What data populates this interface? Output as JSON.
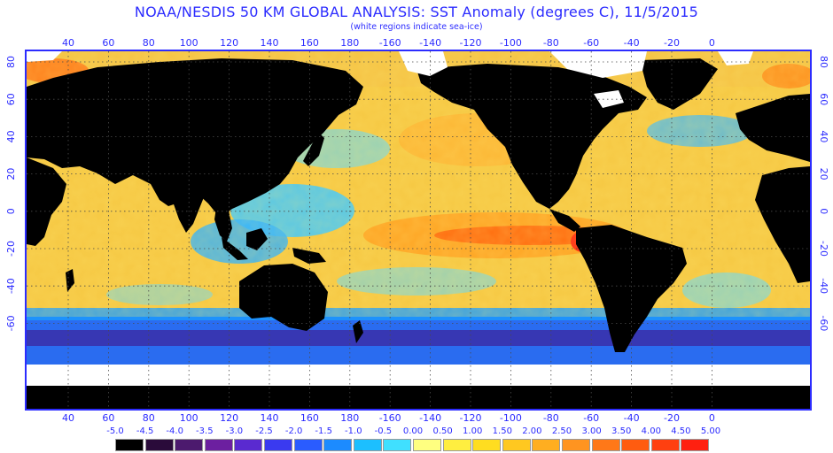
{
  "header": {
    "title": "NOAA/NESDIS 50 KM GLOBAL ANALYSIS: SST Anomaly (degrees C), 11/5/2015",
    "subtitle": "(white regions indicate sea-ice)"
  },
  "axes": {
    "top_lon_labels": [
      "40",
      "60",
      "80",
      "100",
      "120",
      "140",
      "160",
      "180",
      "-160",
      "-140",
      "-120",
      "-100",
      "-80",
      "-60",
      "-40",
      "-20",
      "0"
    ],
    "bottom_lon_labels": [
      "40",
      "60",
      "80",
      "100",
      "120",
      "140",
      "160",
      "180",
      "-160",
      "-140",
      "-120",
      "-100",
      "-80",
      "-60",
      "-40",
      "-20",
      "0"
    ],
    "left_lat_labels": [
      "80",
      "60",
      "40",
      "20",
      "0",
      "-20",
      "-40",
      "-60"
    ],
    "right_lat_labels": [
      "80",
      "60",
      "40",
      "20",
      "0",
      "-20",
      "-40",
      "-60"
    ]
  },
  "colorbar": {
    "labels": [
      "-5.0",
      "-4.5",
      "-4.0",
      "-3.5",
      "-3.0",
      "-2.5",
      "-2.0",
      "-1.5",
      "-1.0",
      "-0.5",
      "0.00",
      "0.50",
      "1.00",
      "1.50",
      "2.00",
      "2.50",
      "3.00",
      "3.50",
      "4.00",
      "4.50",
      "5.00"
    ],
    "colors": [
      "#000000",
      "#2a0b3a",
      "#4c1a6e",
      "#6c1fa0",
      "#5a2ad0",
      "#3a3af0",
      "#2a5cff",
      "#1c8bff",
      "#1cbfff",
      "#40e0ff",
      "#ffff80",
      "#ffee40",
      "#ffdd20",
      "#ffc820",
      "#ffae20",
      "#ff9420",
      "#ff7818",
      "#ff5c10",
      "#ff4010",
      "#ff2010"
    ]
  },
  "map_colors": {
    "land": "#000000",
    "ice": "#ffffff",
    "ocean_base": "#f6c843",
    "grid": "#555555",
    "border": "#2c2cff"
  }
}
